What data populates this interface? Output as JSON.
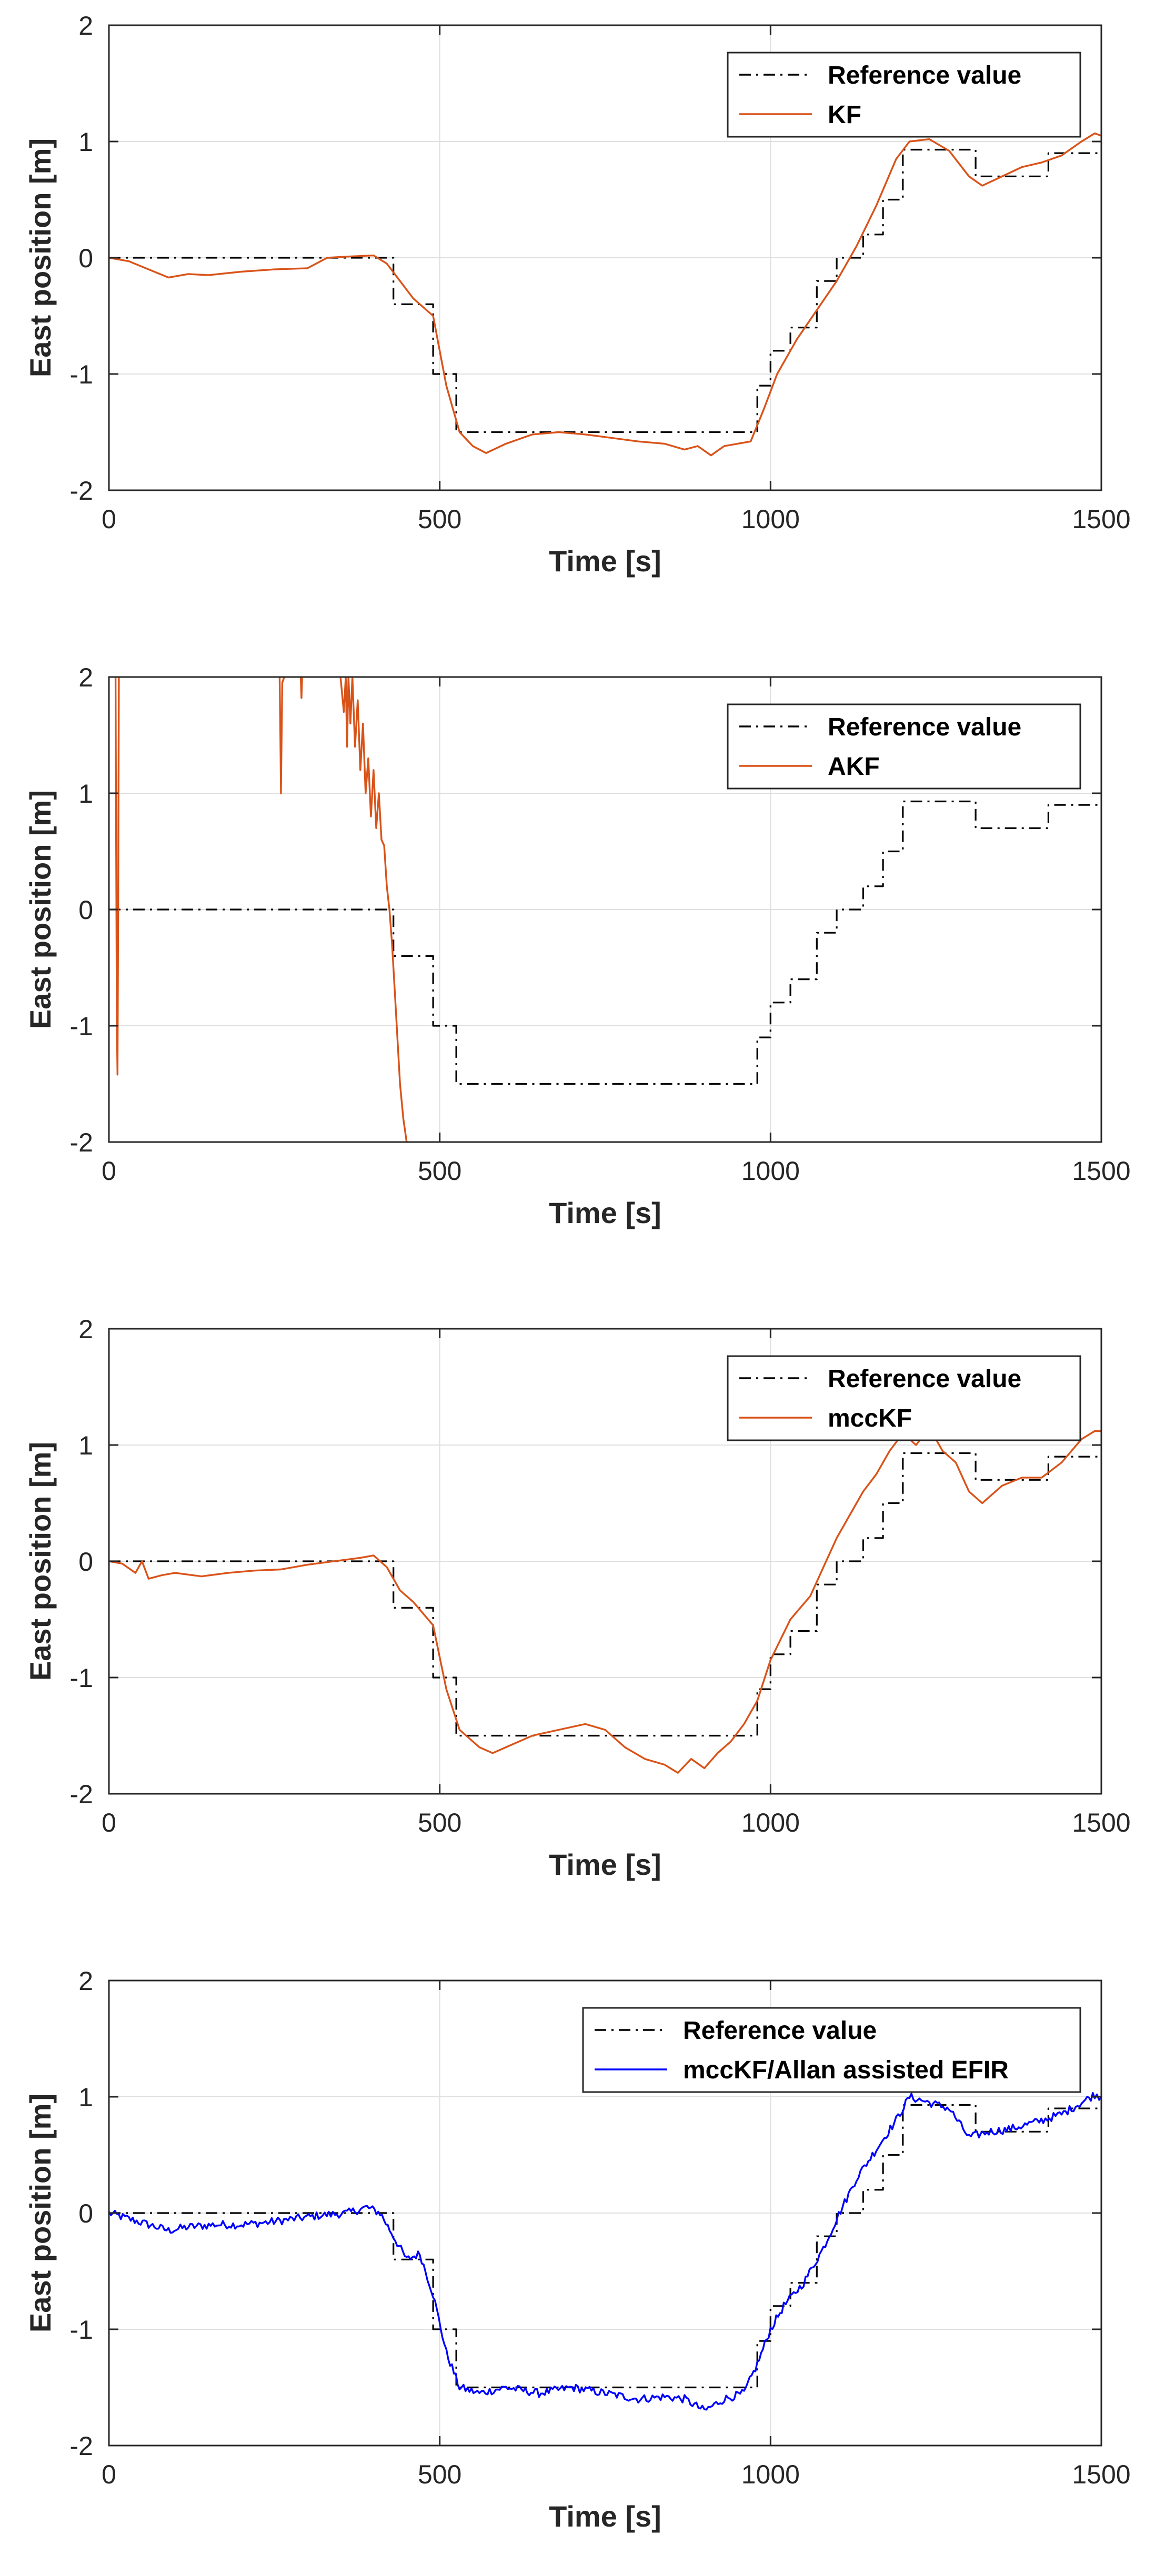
{
  "colors": {
    "reference": "#000000",
    "kf": "#d95319",
    "efir": "#0000ff"
  },
  "chart_data": [
    {
      "type": "line",
      "xlabel": "Time [s]",
      "ylabel": "East position [m]",
      "xlim": [
        0,
        1500
      ],
      "ylim": [
        -2,
        2
      ],
      "xticks": [
        0,
        500,
        1000,
        1500
      ],
      "yticks": [
        -2,
        -1,
        0,
        1,
        2
      ],
      "grid": true,
      "legend_position": "top-right",
      "series": [
        {
          "name": "Reference value",
          "style": "dashdot",
          "color": "#000000",
          "step": true,
          "x": [
            0,
            430,
            490,
            525,
            980,
            1000,
            1030,
            1070,
            1100,
            1140,
            1170,
            1200,
            1310,
            1420,
            1500
          ],
          "y": [
            0,
            -0.4,
            -1.0,
            -1.5,
            -1.1,
            -0.8,
            -0.6,
            -0.2,
            0.0,
            0.2,
            0.5,
            0.93,
            0.7,
            0.9,
            0.9
          ]
        },
        {
          "name": "KF",
          "style": "solid",
          "color": "#d95319",
          "x": [
            0,
            30,
            60,
            90,
            120,
            150,
            200,
            250,
            300,
            330,
            360,
            400,
            420,
            440,
            460,
            490,
            510,
            530,
            550,
            570,
            600,
            640,
            680,
            720,
            760,
            800,
            840,
            870,
            890,
            910,
            930,
            950,
            970,
            990,
            1010,
            1040,
            1070,
            1100,
            1130,
            1160,
            1190,
            1210,
            1240,
            1270,
            1300,
            1320,
            1350,
            1380,
            1410,
            1440,
            1470,
            1490,
            1500
          ],
          "y": [
            0,
            -0.03,
            -0.1,
            -0.17,
            -0.14,
            -0.15,
            -0.12,
            -0.1,
            -0.09,
            0.0,
            0.01,
            0.02,
            -0.05,
            -0.2,
            -0.35,
            -0.5,
            -1.1,
            -1.5,
            -1.62,
            -1.68,
            -1.6,
            -1.52,
            -1.5,
            -1.52,
            -1.55,
            -1.58,
            -1.6,
            -1.65,
            -1.62,
            -1.7,
            -1.62,
            -1.6,
            -1.58,
            -1.3,
            -1.0,
            -0.7,
            -0.45,
            -0.2,
            0.1,
            0.45,
            0.85,
            1.0,
            1.02,
            0.92,
            0.7,
            0.62,
            0.7,
            0.78,
            0.82,
            0.88,
            1.0,
            1.07,
            1.05
          ]
        }
      ]
    },
    {
      "type": "line",
      "xlabel": "Time [s]",
      "ylabel": "East position [m]",
      "xlim": [
        0,
        1500
      ],
      "ylim": [
        -2,
        2
      ],
      "xticks": [
        0,
        500,
        1000,
        1500
      ],
      "yticks": [
        -2,
        -1,
        0,
        1,
        2
      ],
      "grid": true,
      "legend_position": "top-right",
      "series": [
        {
          "name": "Reference value",
          "style": "dashdot",
          "color": "#000000",
          "step": true,
          "x": [
            0,
            430,
            490,
            525,
            980,
            1000,
            1030,
            1070,
            1100,
            1140,
            1170,
            1200,
            1310,
            1420,
            1500
          ],
          "y": [
            0,
            -0.4,
            -1.0,
            -1.5,
            -1.1,
            -0.8,
            -0.6,
            -0.2,
            0.0,
            0.2,
            0.5,
            0.93,
            0.7,
            0.9,
            0.9
          ]
        },
        {
          "name": "AKF",
          "style": "solid",
          "color": "#d95319",
          "segments": [
            {
              "x": [
                10,
                11,
                12,
                13,
                14,
                15
              ],
              "y": [
                2.0,
                0.5,
                -1.0,
                -1.42,
                0.0,
                2.0
              ]
            },
            {
              "x": [
                258,
                259,
                260,
                261,
                262,
                265
              ],
              "y": [
                2.0,
                1.6,
                1.0,
                1.5,
                1.95,
                2.0
              ]
            },
            {
              "x": [
                290,
                291,
                292
              ],
              "y": [
                2.0,
                1.82,
                2.0
              ]
            },
            {
              "x": [
                350,
                355,
                358,
                360,
                362,
                365,
                368,
                372,
                376,
                380,
                384,
                388,
                392,
                396,
                400,
                404,
                408,
                412,
                416,
                420,
                424,
                428,
                432,
                436,
                440,
                445,
                450
              ],
              "y": [
                2.0,
                1.7,
                2.0,
                1.4,
                2.0,
                1.6,
                2.0,
                1.4,
                1.8,
                1.2,
                1.6,
                1.0,
                1.3,
                0.8,
                1.2,
                0.7,
                1.0,
                0.6,
                0.55,
                0.2,
                0.0,
                -0.3,
                -0.7,
                -1.1,
                -1.5,
                -1.8,
                -2.0
              ]
            }
          ]
        }
      ]
    },
    {
      "type": "line",
      "xlabel": "Time [s]",
      "ylabel": "East position [m]",
      "xlim": [
        0,
        1500
      ],
      "ylim": [
        -2,
        2
      ],
      "xticks": [
        0,
        500,
        1000,
        1500
      ],
      "yticks": [
        -2,
        -1,
        0,
        1,
        2
      ],
      "grid": true,
      "legend_position": "top-right",
      "series": [
        {
          "name": "Reference value",
          "style": "dashdot",
          "color": "#000000",
          "step": true,
          "x": [
            0,
            430,
            490,
            525,
            980,
            1000,
            1030,
            1070,
            1100,
            1140,
            1170,
            1200,
            1310,
            1420,
            1500
          ],
          "y": [
            0,
            -0.4,
            -1.0,
            -1.5,
            -1.1,
            -0.8,
            -0.6,
            -0.2,
            0.0,
            0.2,
            0.5,
            0.93,
            0.7,
            0.9,
            0.9
          ]
        },
        {
          "name": "mccKF",
          "style": "solid",
          "color": "#d95319",
          "x": [
            0,
            20,
            40,
            50,
            60,
            80,
            100,
            140,
            180,
            220,
            260,
            300,
            340,
            380,
            400,
            420,
            440,
            460,
            490,
            510,
            530,
            560,
            580,
            600,
            640,
            680,
            720,
            750,
            780,
            810,
            840,
            860,
            880,
            900,
            920,
            940,
            960,
            980,
            1000,
            1030,
            1060,
            1080,
            1100,
            1120,
            1140,
            1160,
            1180,
            1200,
            1220,
            1240,
            1260,
            1280,
            1300,
            1320,
            1350,
            1380,
            1410,
            1440,
            1470,
            1490,
            1500
          ],
          "y": [
            0,
            -0.02,
            -0.1,
            0.0,
            -0.15,
            -0.12,
            -0.1,
            -0.13,
            -0.1,
            -0.08,
            -0.07,
            -0.03,
            0.0,
            0.03,
            0.05,
            -0.05,
            -0.25,
            -0.35,
            -0.55,
            -1.1,
            -1.45,
            -1.6,
            -1.65,
            -1.6,
            -1.5,
            -1.45,
            -1.4,
            -1.45,
            -1.6,
            -1.7,
            -1.75,
            -1.82,
            -1.7,
            -1.78,
            -1.65,
            -1.55,
            -1.4,
            -1.2,
            -0.85,
            -0.5,
            -0.3,
            -0.05,
            0.2,
            0.4,
            0.6,
            0.75,
            0.95,
            1.1,
            1.0,
            1.15,
            0.95,
            0.85,
            0.6,
            0.5,
            0.65,
            0.72,
            0.72,
            0.85,
            1.05,
            1.12,
            1.12
          ]
        }
      ]
    },
    {
      "type": "line",
      "xlabel": "Time [s]",
      "ylabel": "East position [m]",
      "xlim": [
        0,
        1500
      ],
      "ylim": [
        -2,
        2
      ],
      "xticks": [
        0,
        500,
        1000,
        1500
      ],
      "yticks": [
        -2,
        -1,
        0,
        1,
        2
      ],
      "grid": true,
      "legend_position": "top-right",
      "series": [
        {
          "name": "Reference value",
          "style": "dashdot",
          "color": "#000000",
          "step": true,
          "x": [
            0,
            430,
            490,
            525,
            980,
            1000,
            1030,
            1070,
            1100,
            1140,
            1170,
            1200,
            1310,
            1420,
            1500
          ],
          "y": [
            0,
            -0.4,
            -1.0,
            -1.5,
            -1.1,
            -0.8,
            -0.6,
            -0.2,
            0.0,
            0.2,
            0.5,
            0.93,
            0.7,
            0.9,
            0.9
          ]
        },
        {
          "name": "mccKF/Allan assisted EFIR",
          "style": "solid",
          "color": "#0000ff",
          "noise": 0.035,
          "x": [
            0,
            30,
            60,
            90,
            120,
            160,
            200,
            240,
            280,
            320,
            360,
            390,
            410,
            430,
            450,
            470,
            490,
            510,
            530,
            560,
            600,
            650,
            700,
            750,
            800,
            840,
            870,
            900,
            930,
            960,
            980,
            1000,
            1020,
            1050,
            1080,
            1100,
            1130,
            1160,
            1190,
            1210,
            1240,
            1270,
            1300,
            1330,
            1360,
            1400,
            1440,
            1470,
            1490,
            1500
          ],
          "y": [
            0,
            -0.05,
            -0.1,
            -0.15,
            -0.12,
            -0.1,
            -0.1,
            -0.08,
            -0.05,
            -0.02,
            0.0,
            0.05,
            0.0,
            -0.2,
            -0.4,
            -0.35,
            -0.7,
            -1.2,
            -1.5,
            -1.55,
            -1.5,
            -1.55,
            -1.5,
            -1.55,
            -1.6,
            -1.58,
            -1.6,
            -1.7,
            -1.6,
            -1.55,
            -1.3,
            -1.0,
            -0.8,
            -0.6,
            -0.3,
            -0.05,
            0.3,
            0.55,
            0.8,
            1.0,
            0.95,
            0.9,
            0.65,
            0.7,
            0.72,
            0.78,
            0.85,
            0.95,
            1.02,
            1.0
          ]
        }
      ]
    }
  ]
}
